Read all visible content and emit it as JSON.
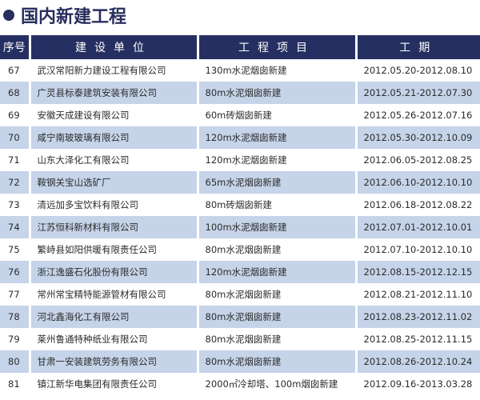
{
  "title": "国内新建工程",
  "columns": [
    "序号",
    "建设单位",
    "工程项目",
    "工期"
  ],
  "rows": [
    {
      "no": "67",
      "unit": "武汉常阳新力建设工程有限公司",
      "project": "130m水泥烟囱新建",
      "period": "2012.05.20-2012.08.10"
    },
    {
      "no": "68",
      "unit": "广灵县标泰建筑安装有限公司",
      "project": "80m水泥烟囱新建",
      "period": "2012.05.21-2012.07.30"
    },
    {
      "no": "69",
      "unit": "安徽天成建设有限公司",
      "project": "60m砖烟囱新建",
      "period": "2012.05.26-2012.07.16"
    },
    {
      "no": "70",
      "unit": "咸宁南玻玻璃有限公司",
      "project": "120m水泥烟囱新建",
      "period": "2012.05.30-2012.10.09"
    },
    {
      "no": "71",
      "unit": "山东大泽化工有限公司",
      "project": "120m水泥烟囱新建",
      "period": "2012.06.05-2012.08.25"
    },
    {
      "no": "72",
      "unit": "鞍钢关宝山选矿厂",
      "project": "65m水泥烟囱新建",
      "period": "2012.06.10-2012.10.10"
    },
    {
      "no": "73",
      "unit": "清远加多宝饮料有限公司",
      "project": "80m砖烟囱新建",
      "period": "2012.06.18-2012.08.22"
    },
    {
      "no": "74",
      "unit": "江苏恒科新材料有限公司",
      "project": "100m水泥烟囱新建",
      "period": "2012.07.01-2012.10.01"
    },
    {
      "no": "75",
      "unit": "繁峙县如阳供暖有限责任公司",
      "project": "80m水泥烟囱新建",
      "period": "2012.07.10-2012.10.10"
    },
    {
      "no": "76",
      "unit": "浙江逸盛石化股份有限公司",
      "project": "120m水泥烟囱新建",
      "period": "2012.08.15-2012.12.15"
    },
    {
      "no": "77",
      "unit": "常州常宝精特能源管材有限公司",
      "project": "80m水泥烟囱新建",
      "period": "2012.08.21-2012.11.10"
    },
    {
      "no": "78",
      "unit": "河北鑫海化工有限公司",
      "project": "80m水泥烟囱新建",
      "period": "2012.08.23-2012.11.02"
    },
    {
      "no": "79",
      "unit": "莱州鲁通特种纸业有限公司",
      "project": "80m水泥烟囱新建",
      "period": "2012.08.25-2012.11.15"
    },
    {
      "no": "80",
      "unit": "甘肃一安装建筑劳务有限公司",
      "project": "80m水泥烟囱新建",
      "period": "2012.08.26-2012.10.24"
    },
    {
      "no": "81",
      "unit": "镇江新华电集团有限责任公司",
      "project": "2000㎡冷却塔、100m烟囱新建",
      "period": "2012.09.16-2013.03.28"
    }
  ],
  "colors": {
    "header": "#262f62",
    "alt_row": "#c6d4e9"
  }
}
